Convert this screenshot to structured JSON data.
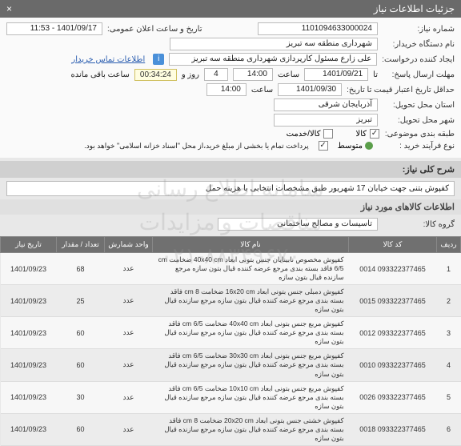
{
  "header": {
    "title": "جزئیات اطلاعات نیاز"
  },
  "form": {
    "need_no_label": "شماره نیاز:",
    "need_no": "1101094633000024",
    "announce_label": "تاریخ و ساعت اعلان عمومی:",
    "announce_value": "1401/09/17 - 11:53",
    "buyer_label": "نام دستگاه خریدار:",
    "buyer_value": "شهرداری منطقه سه تبریز",
    "requester_label": "ایجاد کننده درخواست:",
    "requester_value": "علی زارع مسئول کارپردازی شهرداری منطقه سه تبریز",
    "contact_link": "اطلاعات تماس خریدار",
    "reply_deadline_label": "مهلت ارسال پاسخ:",
    "reply_deadline_till": "تا",
    "reply_date": "1401/09/21",
    "hour_label": "ساعت",
    "reply_hour": "14:00",
    "days_label": "روز و",
    "days": "4",
    "remaining_label": "ساعت باقی مانده",
    "timer": "00:34:24",
    "credit_label": "حداقل تاریخ اعتبار قیمت تا تاریخ:",
    "credit_date": "1401/09/30",
    "credit_hour": "14:00",
    "province_label": "استان محل تحویل:",
    "province": "آذربایجان شرقی",
    "city_label": "شهر محل تحویل:",
    "city": "تبریز",
    "subject_label": "طبقه بندی موضوعی:",
    "subject_goods": "کالا",
    "subject_service": "کالا/خدمت",
    "process_label": "نوع فرآیند خرید :",
    "process_medium": "متوسط",
    "process_small": "",
    "payment_note": "پرداخت تمام یا بخشی از مبلغ خرید،از محل \"اسناد خزانه اسلامی\" خواهد بود."
  },
  "sections": {
    "desc_title": "شرح کلی نیاز:",
    "desc_text": "کفپوش بتنی جهت خیابان 17 شهریور طبق مشخصات انتخابی با هزینه حمل",
    "goods_title": "اطلاعات کالاهای مورد نیاز",
    "group_label": "گروه کالا:",
    "group_value": "تاسیسات و مصالح ساختمانی"
  },
  "table": {
    "headers": {
      "idx": "ردیف",
      "code": "کد کالا",
      "name": "نام کالا",
      "unit": "واحد شمارش",
      "qty": "تعداد / مقدار",
      "date": "تاریخ نیاز"
    },
    "rows": [
      {
        "idx": "1",
        "code": "093322377465 0014",
        "name": "کفپوش مخصوص نابینایان جنس بتونی ابعاد 40x40 cm ضخامت cm 6/5 فاقد بسته بندی مرجع عرضه کننده قیال بتون سازه مرجع سازنده قیال بتون سازه",
        "unit": "عدد",
        "qty": "68",
        "date": "1401/09/23"
      },
      {
        "idx": "2",
        "code": "093322377465 0015",
        "name": "کفپوش دمبلی جنس بتونی ابعاد 16x20 cm ضخامت 8 cm فاقد بسته بندی مرجع عرضه کننده قیال بتون سازه مرجع سازنده قیال بتون سازه",
        "unit": "عدد",
        "qty": "25",
        "date": "1401/09/23"
      },
      {
        "idx": "3",
        "code": "093322377465 0012",
        "name": "کفپوش مربع جنس بتونی ابعاد 40x40 cm ضخامت 6/5 cm فاقد بسته بندی مرجع عرضه کننده قیال بتون سازه مرجع سازنده قیال بتون سازه",
        "unit": "عدد",
        "qty": "60",
        "date": "1401/09/23"
      },
      {
        "idx": "4",
        "code": "093322377465 0010",
        "name": "کفپوش مربع جنس بتونی ابعاد 30x30 cm ضخامت 6/5 cm فاقد بسته بندی مرجع عرضه کننده قیال بتون سازه مرجع سازنده قیال بتون سازه",
        "unit": "عدد",
        "qty": "60",
        "date": "1401/09/23"
      },
      {
        "idx": "5",
        "code": "093322377465 0026",
        "name": "کفپوش مربع جنس بتونی ابعاد 10x10 cm ضخامت 6/5 cm فاقد بسته بندی مرجع عرضه کننده قیال بتون سازه مرجع سازنده قیال بتون سازه",
        "unit": "عدد",
        "qty": "30",
        "date": "1401/09/23"
      },
      {
        "idx": "6",
        "code": "093322377465 0018",
        "name": "کفپوش خشتی جنس بتونی ابعاد 20x20 cm ضخامت 8 cm فاقد بسته بندی مرجع عرضه کننده قیال بتون سازه مرجع سازنده قیال بتون سازه",
        "unit": "عدد",
        "qty": "60",
        "date": "1401/09/23"
      }
    ]
  },
  "watermark": {
    "line1": "سامانه اطلاع رسانی مناقصات و مزایدات",
    "line2": "۰۲۱-۸۸۳۴۹۶۷۰"
  }
}
